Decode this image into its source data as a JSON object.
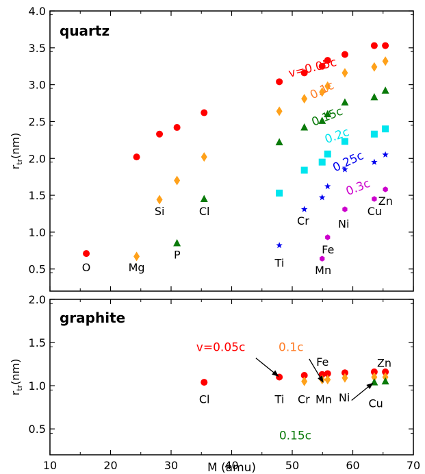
{
  "chart_data": [
    {
      "type": "scatter",
      "title": "quartz",
      "xlabel": "",
      "ylabel": "r_tr(nm)",
      "ylabel_main": "r",
      "ylabel_sub": "tr",
      "ylabel_tail": "(nm)",
      "xlim": [
        10,
        70
      ],
      "ylim": [
        0.2,
        4.0
      ],
      "yticks": [
        0.5,
        1.0,
        1.5,
        2.0,
        2.5,
        3.0,
        3.5,
        4.0
      ],
      "ytick_labels": [
        "0.5",
        "1.0",
        "1.5",
        "2.0",
        "2.5",
        "3.0",
        "3.5",
        "4.0"
      ],
      "grid": false,
      "series": [
        {
          "name": "v=0.05c",
          "color": "#ff0000",
          "marker": "circle",
          "x": [
            15.999,
            24.305,
            28.086,
            30.974,
            35.453,
            47.867,
            51.996,
            54.938,
            55.845,
            58.693,
            63.546,
            65.38
          ],
          "y": [
            0.71,
            2.02,
            2.33,
            2.42,
            2.62,
            3.04,
            3.16,
            3.25,
            3.33,
            3.41,
            3.53,
            3.53
          ]
        },
        {
          "name": "0.1c",
          "color": "#ffa11a",
          "marker": "diamond",
          "x": [
            24.305,
            28.086,
            30.974,
            35.453,
            47.867,
            51.996,
            54.938,
            55.845,
            58.693,
            63.546,
            65.38
          ],
          "y": [
            0.67,
            1.44,
            1.7,
            2.02,
            2.64,
            2.81,
            2.9,
            2.98,
            3.16,
            3.24,
            3.32
          ]
        },
        {
          "name": "0.15c",
          "color": "#0a7a0a",
          "marker": "triangle",
          "x": [
            30.974,
            35.453,
            47.867,
            51.996,
            54.938,
            55.845,
            58.693,
            63.546,
            65.38
          ],
          "y": [
            0.85,
            1.45,
            2.22,
            2.42,
            2.51,
            2.6,
            2.76,
            2.83,
            2.92
          ]
        },
        {
          "name": "0.2c",
          "color": "#00e5ee",
          "marker": "square",
          "x": [
            47.867,
            51.996,
            54.938,
            55.845,
            58.693,
            63.546,
            65.38
          ],
          "y": [
            1.53,
            1.84,
            1.95,
            2.06,
            2.23,
            2.33,
            2.4
          ]
        },
        {
          "name": "0.25c",
          "color": "#0000ee",
          "marker": "star",
          "x": [
            47.867,
            51.996,
            54.938,
            55.845,
            58.693,
            63.546,
            65.38
          ],
          "y": [
            0.82,
            1.31,
            1.47,
            1.62,
            1.85,
            1.95,
            2.05
          ]
        },
        {
          "name": "0.3c",
          "color": "#cc00cc",
          "marker": "hexagon",
          "x": [
            54.938,
            55.845,
            58.693,
            63.546,
            65.38
          ],
          "y": [
            0.64,
            0.93,
            1.31,
            1.45,
            1.58
          ]
        }
      ],
      "element_labels": [
        {
          "text": "O",
          "x": 16.0,
          "y": 0.47
        },
        {
          "text": "Mg",
          "x": 24.3,
          "y": 0.47
        },
        {
          "text": "P",
          "x": 31.0,
          "y": 0.64
        },
        {
          "text": "Si",
          "x": 28.1,
          "y": 1.23
        },
        {
          "text": "Cl",
          "x": 35.5,
          "y": 1.23
        },
        {
          "text": "Ti",
          "x": 47.9,
          "y": 0.53
        },
        {
          "text": "Cr",
          "x": 51.8,
          "y": 1.1
        },
        {
          "text": "Fe",
          "x": 55.9,
          "y": 0.71
        },
        {
          "text": "Mn",
          "x": 55.1,
          "y": 0.43
        },
        {
          "text": "Ni",
          "x": 58.5,
          "y": 1.06
        },
        {
          "text": "Cu",
          "x": 63.6,
          "y": 1.23
        },
        {
          "text": "Zn",
          "x": 65.4,
          "y": 1.37
        }
      ],
      "annotations": [
        {
          "text": "v=0.05c",
          "color": "#ff0000",
          "x": 53.5,
          "y": 3.18,
          "rotate": -14
        },
        {
          "text": "0.1c",
          "color": "#ff7f2a",
          "x": 55.2,
          "y": 2.88,
          "rotate": -27
        },
        {
          "text": "0.15c",
          "color": "#0a7a0a",
          "x": 56.0,
          "y": 2.52,
          "rotate": -22
        },
        {
          "text": "0.2c",
          "color": "#00e5ee",
          "x": 57.6,
          "y": 2.26,
          "rotate": -20
        },
        {
          "text": "0.25c",
          "color": "#0000ee",
          "x": 59.5,
          "y": 1.91,
          "rotate": -25
        },
        {
          "text": "0.3c",
          "color": "#cc00cc",
          "x": 61.1,
          "y": 1.56,
          "rotate": -22
        }
      ]
    },
    {
      "type": "scatter",
      "title": "graphite",
      "xlabel": "M (amu)",
      "ylabel": "r_tr(nm)",
      "ylabel_main": "r",
      "ylabel_sub": "tr",
      "ylabel_tail": "(nm)",
      "xlim": [
        10,
        70
      ],
      "ylim": [
        0.2,
        2.0
      ],
      "xticks": [
        10,
        20,
        30,
        40,
        50,
        60,
        70
      ],
      "xtick_labels": [
        "10",
        "20",
        "30",
        "40",
        "50",
        "60",
        "70"
      ],
      "yticks": [
        0.5,
        1.0,
        1.5,
        2.0
      ],
      "ytick_labels": [
        "0.5",
        "1.0",
        "1.5",
        "2.0"
      ],
      "grid": false,
      "series": [
        {
          "name": "v=0.05c",
          "color": "#ff0000",
          "marker": "circle",
          "x": [
            35.453,
            47.867,
            51.996,
            54.938,
            55.845,
            58.693,
            63.546,
            65.38
          ],
          "y": [
            1.04,
            1.1,
            1.12,
            1.13,
            1.14,
            1.15,
            1.16,
            1.16
          ]
        },
        {
          "name": "0.1c",
          "color": "#ffa11a",
          "marker": "diamond",
          "x": [
            51.996,
            54.938,
            55.845,
            58.693,
            63.546,
            65.38
          ],
          "y": [
            1.05,
            1.07,
            1.07,
            1.09,
            1.1,
            1.1
          ]
        },
        {
          "name": "0.15c",
          "color": "#0a7a0a",
          "marker": "triangle",
          "x": [
            63.546,
            65.38
          ],
          "y": [
            1.04,
            1.05
          ]
        }
      ],
      "element_labels": [
        {
          "text": "Cl",
          "x": 35.5,
          "y": 0.8
        },
        {
          "text": "Ti",
          "x": 47.9,
          "y": 0.8
        },
        {
          "text": "Cr",
          "x": 51.9,
          "y": 0.8
        },
        {
          "text": "Mn",
          "x": 55.2,
          "y": 0.8
        },
        {
          "text": "Fe",
          "x": 55.0,
          "y": 1.23
        },
        {
          "text": "Ni",
          "x": 58.6,
          "y": 0.82
        },
        {
          "text": "Cu",
          "x": 63.8,
          "y": 0.75
        },
        {
          "text": "Zn",
          "x": 65.2,
          "y": 1.22
        }
      ],
      "annotations": [
        {
          "text": "v=0.05c",
          "color": "#ff0000",
          "x": 38.2,
          "y": 1.4,
          "rotate": 0
        },
        {
          "text": "0.1c",
          "color": "#ff7f2a",
          "x": 49.8,
          "y": 1.4,
          "rotate": 0
        },
        {
          "text": "0.15c",
          "color": "#0a7a0a",
          "x": 50.5,
          "y": 0.38,
          "rotate": 0
        }
      ],
      "arrows": [
        {
          "from": [
            44.0,
            1.32
          ],
          "to": [
            47.7,
            1.11
          ]
        },
        {
          "from": [
            52.8,
            1.31
          ],
          "to": [
            55.1,
            1.04
          ]
        },
        {
          "from": [
            59.8,
            0.83
          ],
          "to": [
            63.3,
            1.03
          ]
        }
      ]
    }
  ]
}
